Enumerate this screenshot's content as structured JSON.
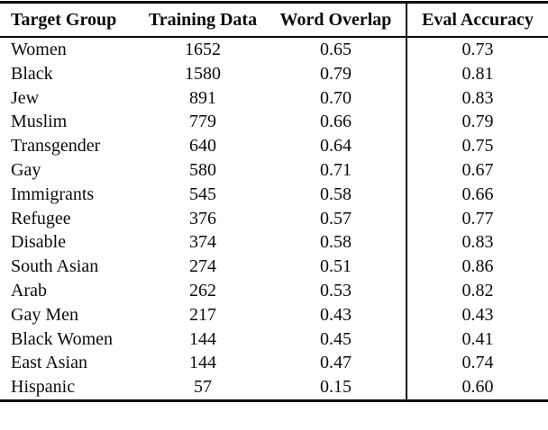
{
  "table": {
    "columns": [
      "Target Group",
      "Training Data",
      "Word Overlap",
      "Eval Accuracy"
    ],
    "rows": [
      [
        "Women",
        "1652",
        "0.65",
        "0.73"
      ],
      [
        "Black",
        "1580",
        "0.79",
        "0.81"
      ],
      [
        "Jew",
        "891",
        "0.70",
        "0.83"
      ],
      [
        "Muslim",
        "779",
        "0.66",
        "0.79"
      ],
      [
        "Transgender",
        "640",
        "0.64",
        "0.75"
      ],
      [
        "Gay",
        "580",
        "0.71",
        "0.67"
      ],
      [
        "Immigrants",
        "545",
        "0.58",
        "0.66"
      ],
      [
        "Refugee",
        "376",
        "0.57",
        "0.77"
      ],
      [
        "Disable",
        "374",
        "0.58",
        "0.83"
      ],
      [
        "South Asian",
        "274",
        "0.51",
        "0.86"
      ],
      [
        "Arab",
        "262",
        "0.53",
        "0.82"
      ],
      [
        "Gay Men",
        "217",
        "0.43",
        "0.43"
      ],
      [
        "Black Women",
        "144",
        "0.45",
        "0.41"
      ],
      [
        "East Asian",
        "144",
        "0.47",
        "0.74"
      ],
      [
        "Hispanic",
        "57",
        "0.15",
        "0.60"
      ]
    ],
    "colors": {
      "rule": "#0b0b0b",
      "text": "#0b0b0b",
      "background": "#ffffff"
    }
  }
}
